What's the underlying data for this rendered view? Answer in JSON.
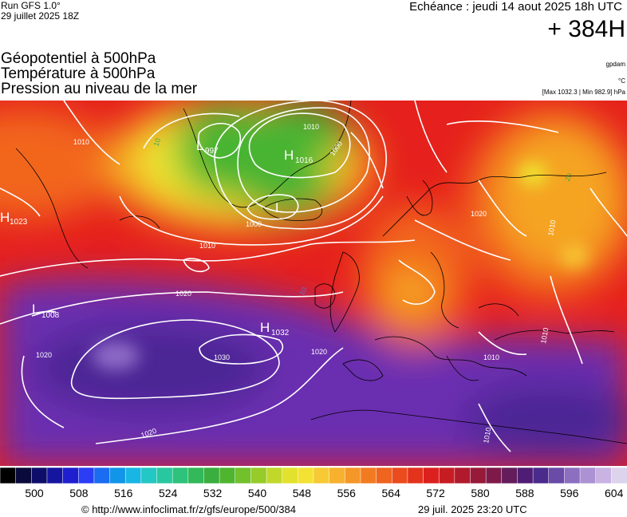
{
  "header": {
    "run": "Run GFS 1.0°",
    "run_date": "29 juillet 2025 18Z",
    "echeance": "Echéance : jeudi 14 aout 2025 18h UTC",
    "horizon": "+ 384H"
  },
  "params": [
    "Géopotentiel à 500hPa",
    "Température à 500hPa",
    "Pression au niveau de la mer"
  ],
  "units": {
    "geopotential": "gpdam",
    "temperature": "°C",
    "pressure_range": "[Max 1032.3 | Min 982.9] hPa"
  },
  "map_labels": {
    "highs": [
      {
        "letter": "H",
        "value": "1023"
      },
      {
        "letter": "H",
        "value": "1016"
      },
      {
        "letter": "H",
        "value": "1032"
      }
    ],
    "lows": [
      {
        "letter": "L",
        "value": "997"
      },
      {
        "letter": "L",
        "value": "1008"
      },
      {
        "letter": "L",
        "value": ""
      }
    ],
    "isobar_labels": [
      "1010",
      "1010",
      "1000",
      "1000",
      "1010",
      "1020",
      "1020",
      "1020",
      "1020",
      "1030",
      "1020",
      "1010",
      "1010",
      "1010",
      "1010",
      "10",
      "20",
      "10"
    ]
  },
  "colors": {
    "sea_purple": "#6a2fb0",
    "deep_purple": "#4b2894",
    "red": "#e5201d",
    "orange": "#f2661c",
    "yellow_orange": "#f5a421",
    "yellow": "#eee831",
    "green": "#46b430",
    "isobar": "#ffffff",
    "coast": "#000000"
  },
  "scale": {
    "ticks": [
      "500",
      "508",
      "516",
      "524",
      "532",
      "540",
      "548",
      "556",
      "564",
      "572",
      "580",
      "588",
      "596",
      "604"
    ],
    "colors": [
      "#000000",
      "#0a0a3c",
      "#0e0e6a",
      "#1515a0",
      "#1f1fd0",
      "#2b3ef5",
      "#1a6cf0",
      "#1195e8",
      "#18b6e3",
      "#23c7c4",
      "#29c7a0",
      "#2ec27b",
      "#33b85a",
      "#3aae3e",
      "#4fb52f",
      "#72c02c",
      "#97cb2a",
      "#c1d82b",
      "#e2e22e",
      "#f3e133",
      "#f7c934",
      "#f7b12f",
      "#f59628",
      "#f27b22",
      "#ef641e",
      "#ea4c1d",
      "#e3331d",
      "#dc201e",
      "#c81c24",
      "#b01a2c",
      "#971a3a",
      "#7e1a4a",
      "#651c5c",
      "#4f1d73",
      "#4a2a8b",
      "#6a4ba8",
      "#8d6fc0",
      "#ac91d3",
      "#c8b3e3",
      "#ddd3ec"
    ]
  },
  "footer": {
    "copyright": "© http://www.infoclimat.fr/z/gfs/europe/500/384",
    "generated": "29 juil. 2025 23:20 UTC"
  }
}
